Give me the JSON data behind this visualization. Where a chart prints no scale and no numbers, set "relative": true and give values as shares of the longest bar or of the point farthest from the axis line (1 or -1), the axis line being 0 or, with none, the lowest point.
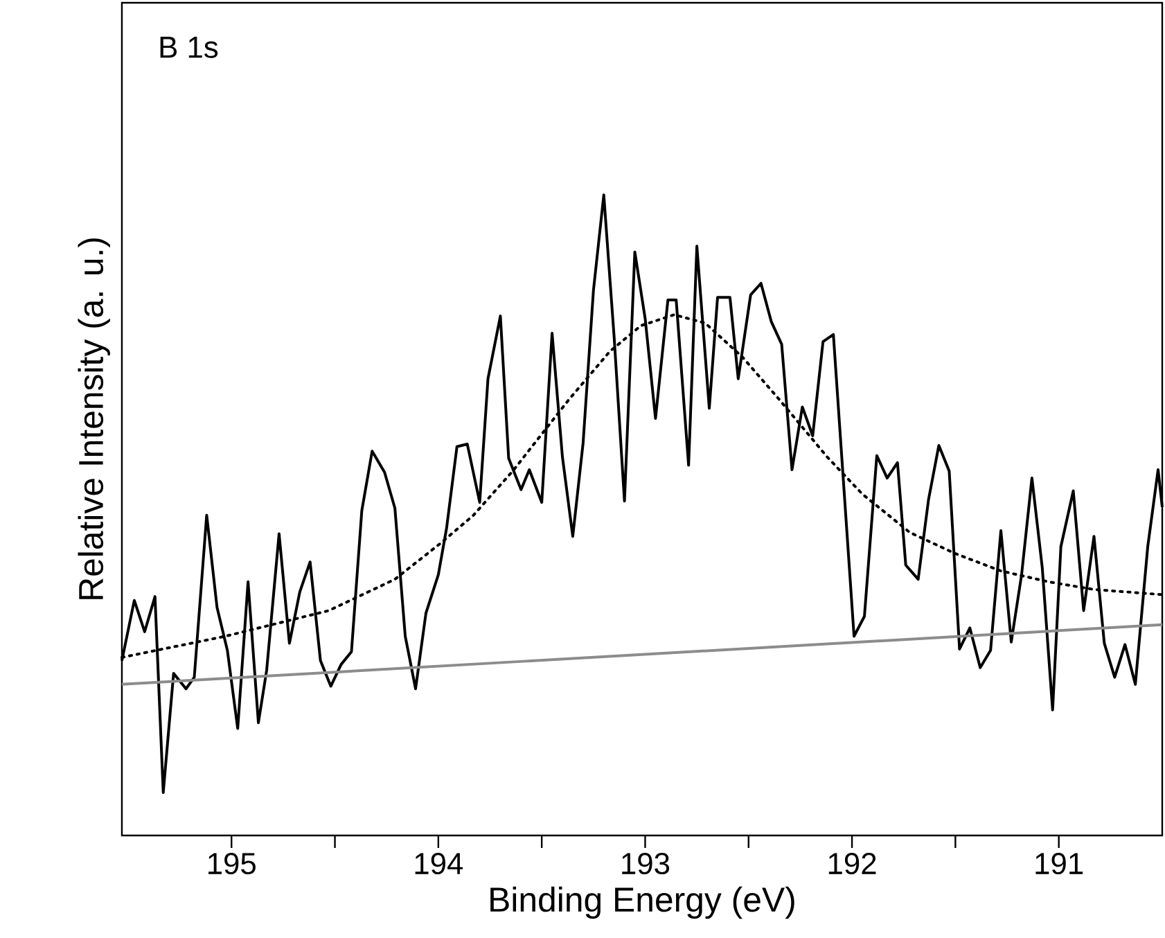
{
  "chart_data": {
    "type": "line",
    "relative": true,
    "xlabel": "Binding Energy (eV)",
    "ylabel": "Relative Intensity (a. u.)",
    "annotations": [
      "B 1s"
    ],
    "xlim": [
      195.53,
      190.5
    ],
    "xticks": [
      195,
      {
        "value": 194.5,
        "label": null
      },
      194,
      {
        "value": 193.5,
        "label": null
      },
      193,
      {
        "value": 192.5,
        "label": null
      },
      192,
      {
        "value": 191.5,
        "label": null
      },
      191
    ],
    "tick_labels": "x",
    "marker": "none",
    "series": [
      {
        "color": "#000000",
        "line_style": "solid",
        "x": [
          195.53,
          195.47,
          195.42,
          195.37,
          195.33,
          195.28,
          195.22,
          195.18,
          195.12,
          195.07,
          195.02,
          194.97,
          194.92,
          194.87,
          194.83,
          194.77,
          194.72,
          194.67,
          194.62,
          194.57,
          194.52,
          194.47,
          194.42,
          194.37,
          194.32,
          194.26,
          194.21,
          194.16,
          194.11,
          194.06,
          194.0,
          193.96,
          193.91,
          193.86,
          193.8,
          193.76,
          193.7,
          193.66,
          193.6,
          193.56,
          193.5,
          193.45,
          193.4,
          193.35,
          193.3,
          193.25,
          193.2,
          193.15,
          193.1,
          193.05,
          193.0,
          192.95,
          192.89,
          192.85,
          192.79,
          192.75,
          192.69,
          192.65,
          192.59,
          192.55,
          192.49,
          192.44,
          192.39,
          192.34,
          192.29,
          192.24,
          192.19,
          192.14,
          192.09,
          191.99,
          191.94,
          191.88,
          191.83,
          191.78,
          191.74,
          191.68,
          191.63,
          191.58,
          191.53,
          191.48,
          191.43,
          191.38,
          191.33,
          191.28,
          191.23,
          191.18,
          191.13,
          191.08,
          191.03,
          190.99,
          190.93,
          190.88,
          190.83,
          190.78,
          190.73,
          190.68,
          190.63,
          190.57,
          190.52,
          190.5
        ],
        "values": [
          0.273,
          0.367,
          0.318,
          0.373,
          0.067,
          0.253,
          0.229,
          0.247,
          0.5,
          0.356,
          0.289,
          0.167,
          0.396,
          0.176,
          0.258,
          0.471,
          0.3,
          0.38,
          0.427,
          0.273,
          0.233,
          0.267,
          0.287,
          0.507,
          0.6,
          0.567,
          0.511,
          0.311,
          0.229,
          0.347,
          0.407,
          0.48,
          0.607,
          0.611,
          0.52,
          0.713,
          0.811,
          0.589,
          0.54,
          0.571,
          0.52,
          0.784,
          0.591,
          0.467,
          0.613,
          0.851,
          1,
          0.778,
          0.522,
          0.911,
          0.807,
          0.651,
          0.836,
          0.836,
          0.578,
          0.92,
          0.667,
          0.84,
          0.84,
          0.713,
          0.844,
          0.862,
          0.802,
          0.767,
          0.571,
          0.669,
          0.624,
          0.771,
          0.782,
          0.311,
          0.342,
          0.593,
          0.558,
          0.582,
          0.422,
          0.4,
          0.524,
          0.609,
          0.569,
          0.291,
          0.324,
          0.262,
          0.289,
          0.476,
          0.302,
          0.407,
          0.558,
          0.418,
          0.196,
          0.451,
          0.538,
          0.351,
          0.467,
          0.3,
          0.247,
          0.298,
          0.236,
          0.451,
          0.571,
          0.513
        ]
      },
      {
        "color": "#000000",
        "line_style": "dotted",
        "x": [
          195.53,
          195.03,
          194.53,
          194.21,
          193.99,
          193.83,
          193.64,
          193.37,
          193.17,
          193.02,
          192.86,
          192.71,
          192.53,
          192.35,
          192.12,
          191.95,
          191.72,
          191.5,
          191.28,
          191.05,
          190.83,
          190.5
        ],
        "values": [
          0.278,
          0.311,
          0.351,
          0.4,
          0.456,
          0.5,
          0.569,
          0.68,
          0.756,
          0.796,
          0.813,
          0.8,
          0.747,
          0.68,
          0.591,
          0.533,
          0.473,
          0.44,
          0.413,
          0.396,
          0.384,
          0.376
        ]
      },
      {
        "color": "#8c8c8c",
        "line_style": "solid",
        "x": [
          195.53,
          190.5
        ],
        "values": [
          0.236,
          0.329
        ]
      }
    ]
  }
}
